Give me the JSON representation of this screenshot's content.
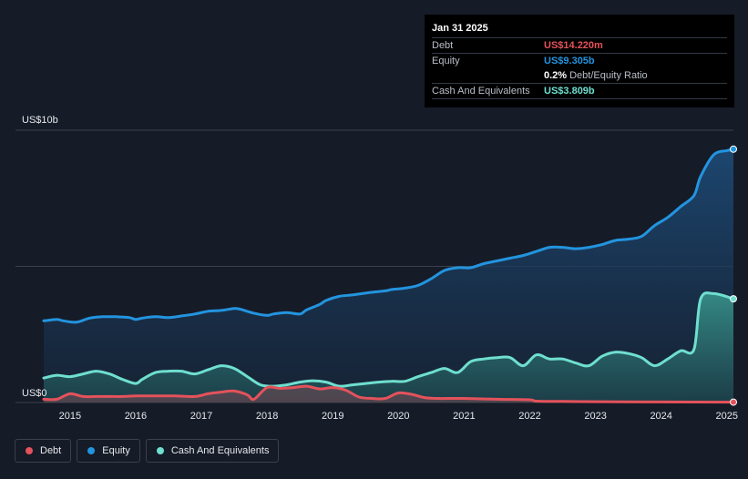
{
  "tooltip": {
    "date": "Jan 31 2025",
    "debt_label": "Debt",
    "debt_value": "US$14.220m",
    "equity_label": "Equity",
    "equity_value": "US$9.305b",
    "ratio_value": "0.2%",
    "ratio_label": "Debt/Equity Ratio",
    "cash_label": "Cash And Equivalents",
    "cash_value": "US$3.809b"
  },
  "legend": {
    "debt": "Debt",
    "equity": "Equity",
    "cash": "Cash And Equivalents"
  },
  "colors": {
    "debt": "#e4525b",
    "equity": "#2394df",
    "cash": "#6fdfcf",
    "background": "#151b27"
  },
  "chart_data": {
    "type": "area",
    "y_axis_labels": [
      "US$10b",
      "US$0"
    ],
    "ylim": [
      0,
      10
    ],
    "xlim": [
      2014.6,
      2025.1
    ],
    "x_tick_labels": [
      "2015",
      "2016",
      "2017",
      "2018",
      "2019",
      "2020",
      "2021",
      "2022",
      "2023",
      "2024",
      "2025"
    ],
    "grid": true,
    "legend_position": "bottom-left",
    "series": [
      {
        "name": "Equity",
        "x": [
          2014.6,
          2014.8,
          2014.9,
          2015.1,
          2015.3,
          2015.5,
          2015.7,
          2015.9,
          2016.0,
          2016.1,
          2016.3,
          2016.5,
          2016.7,
          2016.9,
          2017.1,
          2017.3,
          2017.5,
          2017.6,
          2017.8,
          2018.0,
          2018.1,
          2018.3,
          2018.5,
          2018.6,
          2018.8,
          2018.9,
          2019.1,
          2019.3,
          2019.6,
          2019.8,
          2019.9,
          2020.1,
          2020.3,
          2020.5,
          2020.7,
          2020.9,
          2021.1,
          2021.3,
          2021.5,
          2021.7,
          2021.9,
          2022.1,
          2022.3,
          2022.5,
          2022.7,
          2022.9,
          2023.1,
          2023.3,
          2023.5,
          2023.7,
          2023.9,
          2024.1,
          2024.3,
          2024.5,
          2024.6,
          2024.8,
          2025.0,
          2025.1
        ],
        "values": [
          3.0,
          3.05,
          3.0,
          2.95,
          3.1,
          3.15,
          3.15,
          3.12,
          3.05,
          3.1,
          3.15,
          3.12,
          3.18,
          3.25,
          3.35,
          3.38,
          3.45,
          3.42,
          3.28,
          3.2,
          3.25,
          3.3,
          3.25,
          3.4,
          3.6,
          3.75,
          3.9,
          3.95,
          4.05,
          4.1,
          4.15,
          4.2,
          4.3,
          4.55,
          4.85,
          4.95,
          4.95,
          5.1,
          5.2,
          5.3,
          5.4,
          5.55,
          5.7,
          5.7,
          5.65,
          5.7,
          5.8,
          5.95,
          6.0,
          6.1,
          6.5,
          6.8,
          7.2,
          7.6,
          8.3,
          9.1,
          9.25,
          9.305
        ]
      },
      {
        "name": "Cash And Equivalents",
        "x": [
          2014.6,
          2014.8,
          2015.0,
          2015.2,
          2015.4,
          2015.6,
          2015.8,
          2016.0,
          2016.1,
          2016.3,
          2016.5,
          2016.7,
          2016.9,
          2017.1,
          2017.3,
          2017.5,
          2017.7,
          2017.9,
          2018.1,
          2018.3,
          2018.5,
          2018.7,
          2018.9,
          2019.1,
          2019.3,
          2019.5,
          2019.7,
          2019.9,
          2020.1,
          2020.3,
          2020.5,
          2020.7,
          2020.9,
          2021.1,
          2021.3,
          2021.5,
          2021.7,
          2021.9,
          2022.1,
          2022.3,
          2022.5,
          2022.7,
          2022.9,
          2023.1,
          2023.3,
          2023.5,
          2023.7,
          2023.9,
          2024.1,
          2024.3,
          2024.5,
          2024.6,
          2024.8,
          2025.1
        ],
        "values": [
          0.9,
          1.0,
          0.95,
          1.05,
          1.15,
          1.05,
          0.85,
          0.7,
          0.85,
          1.1,
          1.15,
          1.15,
          1.05,
          1.2,
          1.35,
          1.25,
          0.95,
          0.65,
          0.6,
          0.65,
          0.75,
          0.8,
          0.75,
          0.6,
          0.65,
          0.7,
          0.75,
          0.78,
          0.78,
          0.95,
          1.1,
          1.25,
          1.1,
          1.5,
          1.6,
          1.65,
          1.65,
          1.35,
          1.75,
          1.6,
          1.6,
          1.45,
          1.35,
          1.7,
          1.85,
          1.8,
          1.65,
          1.35,
          1.6,
          1.9,
          1.95,
          3.8,
          4.0,
          3.809
        ]
      },
      {
        "name": "Debt",
        "x": [
          2014.6,
          2014.8,
          2015.0,
          2015.2,
          2015.4,
          2015.6,
          2015.8,
          2016.0,
          2016.3,
          2016.6,
          2016.9,
          2017.1,
          2017.3,
          2017.5,
          2017.7,
          2017.8,
          2018.0,
          2018.2,
          2018.4,
          2018.6,
          2018.8,
          2019.0,
          2019.2,
          2019.4,
          2019.6,
          2019.8,
          2020.0,
          2020.2,
          2020.4,
          2020.6,
          2020.8,
          2021.0,
          2021.5,
          2022.0,
          2022.1,
          2022.5,
          2023.0,
          2024.0,
          2025.1
        ],
        "values": [
          0.12,
          0.12,
          0.32,
          0.22,
          0.22,
          0.22,
          0.22,
          0.24,
          0.24,
          0.24,
          0.22,
          0.32,
          0.38,
          0.42,
          0.28,
          0.12,
          0.55,
          0.52,
          0.55,
          0.6,
          0.5,
          0.55,
          0.45,
          0.2,
          0.15,
          0.15,
          0.35,
          0.3,
          0.18,
          0.15,
          0.15,
          0.15,
          0.12,
          0.1,
          0.05,
          0.04,
          0.03,
          0.02,
          0.014
        ]
      }
    ]
  }
}
